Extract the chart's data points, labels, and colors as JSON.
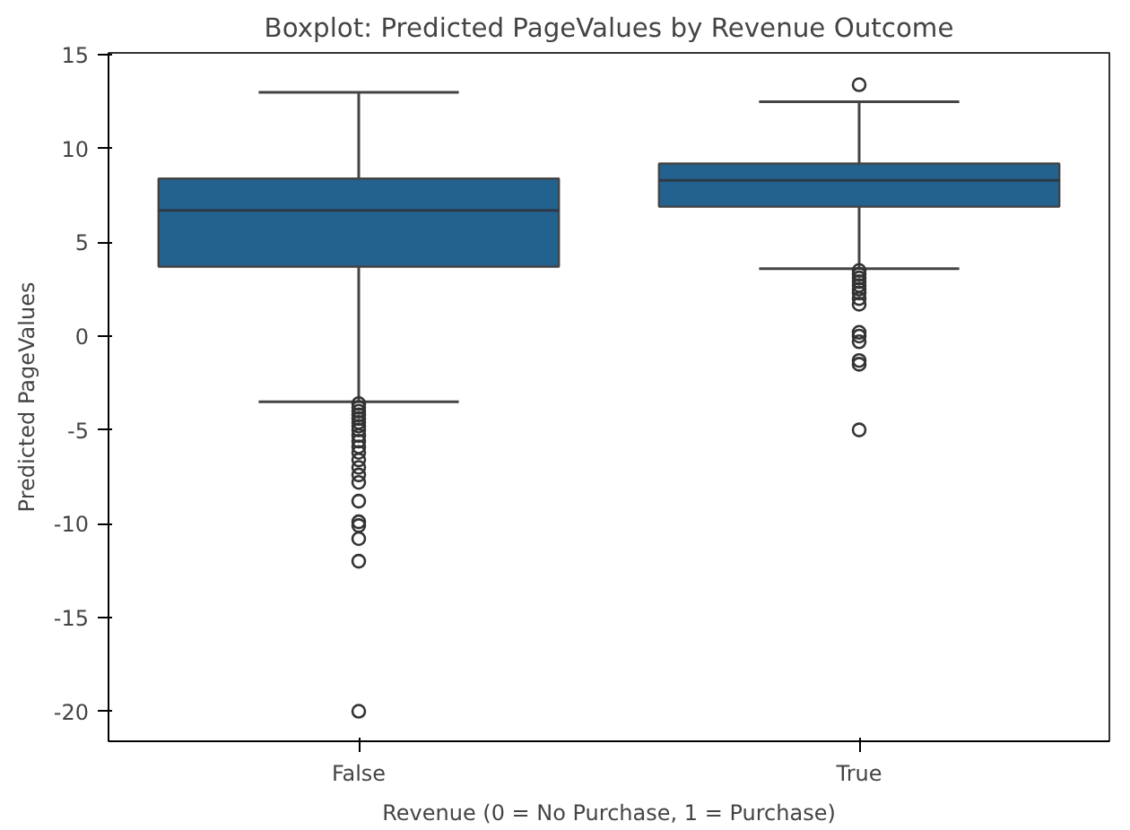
{
  "chart_data": {
    "type": "box",
    "title": "Boxplot: Predicted PageValues by Revenue Outcome",
    "xlabel": "Revenue (0 = No Purchase, 1 = Purchase)",
    "ylabel": "Predicted PageValues",
    "categories": [
      "False",
      "True"
    ],
    "boxes": [
      {
        "low": -3.5,
        "q1": 3.7,
        "median": 6.7,
        "q3": 8.4,
        "high": 13.0,
        "outliers": [
          -3.6,
          -3.8,
          -4.0,
          -4.2,
          -4.4,
          -4.6,
          -4.8,
          -5.0,
          -5.3,
          -5.6,
          -5.9,
          -6.2,
          -6.6,
          -7.0,
          -7.4,
          -7.8,
          -8.8,
          -9.9,
          -10.1,
          -10.8,
          -12.0,
          -20.0
        ]
      },
      {
        "low": 3.6,
        "q1": 6.9,
        "median": 8.3,
        "q3": 9.2,
        "high": 12.5,
        "outliers": [
          13.4,
          3.5,
          3.3,
          3.1,
          2.9,
          2.7,
          2.5,
          2.3,
          2.0,
          1.7,
          0.2,
          0.0,
          -0.3,
          -1.3,
          -1.5,
          -5.0
        ]
      }
    ],
    "color": "#23618e",
    "ylim": [
      -21.6,
      15.1
    ],
    "yticks": [
      -20,
      -15,
      -10,
      -5,
      0,
      5,
      10,
      15
    ],
    "grid": false,
    "marker": "circle"
  }
}
